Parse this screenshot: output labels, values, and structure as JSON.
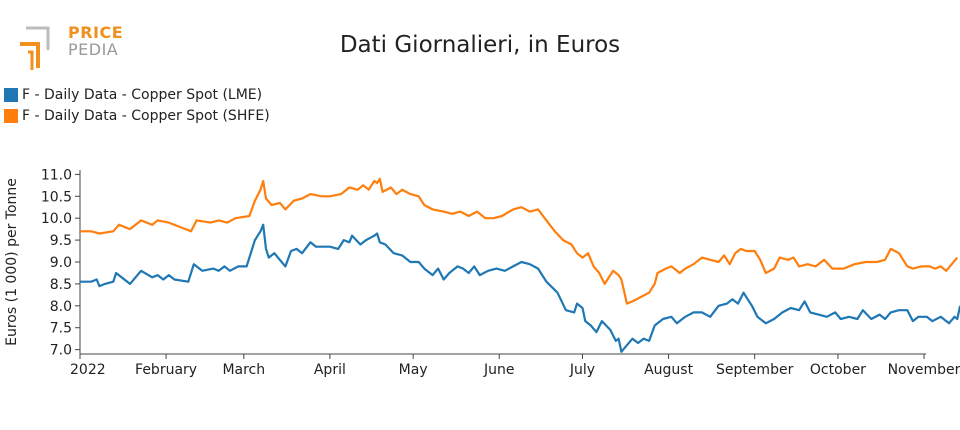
{
  "logo": {
    "line1": "PRICE",
    "line2": "PEDIA",
    "icon": "pricepedia-logo-icon"
  },
  "chart_data": {
    "type": "line",
    "title": "Dati Giornalieri, in Euros",
    "xlabel": "",
    "ylabel": "Euros (1 000) per Tonne",
    "ylim": [
      6.9,
      11.1
    ],
    "yticks": [
      7.0,
      7.5,
      8.0,
      8.5,
      9.0,
      9.5,
      10.0,
      10.5,
      11.0
    ],
    "xlim": [
      "2022-01-01",
      "2022-11-01"
    ],
    "xticks": [
      {
        "date": "2022-01-01",
        "label": "2022"
      },
      {
        "date": "2022-02-01",
        "label": "February"
      },
      {
        "date": "2022-03-01",
        "label": "March"
      },
      {
        "date": "2022-04-01",
        "label": "April"
      },
      {
        "date": "2022-05-01",
        "label": "May"
      },
      {
        "date": "2022-06-01",
        "label": "June"
      },
      {
        "date": "2022-07-01",
        "label": "July"
      },
      {
        "date": "2022-08-01",
        "label": "August"
      },
      {
        "date": "2022-09-01",
        "label": "September"
      },
      {
        "date": "2022-10-01",
        "label": "October"
      },
      {
        "date": "2022-11-01",
        "label": "November"
      }
    ],
    "legend_position": "top-left",
    "grid": false,
    "series": [
      {
        "name": "F - Daily Data - Copper Spot (LME)",
        "color": "#1f77b4",
        "points": [
          [
            "2022-01-01",
            8.55
          ],
          [
            "2022-01-05",
            8.55
          ],
          [
            "2022-01-07",
            8.6
          ],
          [
            "2022-01-08",
            8.45
          ],
          [
            "2022-01-10",
            8.5
          ],
          [
            "2022-01-13",
            8.55
          ],
          [
            "2022-01-14",
            8.75
          ],
          [
            "2022-01-19",
            8.5
          ],
          [
            "2022-01-23",
            8.8
          ],
          [
            "2022-01-27",
            8.65
          ],
          [
            "2022-01-29",
            8.7
          ],
          [
            "2022-01-31",
            8.6
          ],
          [
            "2022-02-02",
            8.7
          ],
          [
            "2022-02-04",
            8.6
          ],
          [
            "2022-02-09",
            8.55
          ],
          [
            "2022-02-11",
            8.95
          ],
          [
            "2022-02-14",
            8.8
          ],
          [
            "2022-02-18",
            8.85
          ],
          [
            "2022-02-20",
            8.8
          ],
          [
            "2022-02-22",
            8.9
          ],
          [
            "2022-02-24",
            8.8
          ],
          [
            "2022-02-27",
            8.9
          ],
          [
            "2022-03-02",
            8.9
          ],
          [
            "2022-03-05",
            9.5
          ],
          [
            "2022-03-07",
            9.7
          ],
          [
            "2022-03-08",
            9.85
          ],
          [
            "2022-03-09",
            9.3
          ],
          [
            "2022-03-10",
            9.1
          ],
          [
            "2022-03-12",
            9.2
          ],
          [
            "2022-03-16",
            8.9
          ],
          [
            "2022-03-18",
            9.25
          ],
          [
            "2022-03-20",
            9.3
          ],
          [
            "2022-03-22",
            9.2
          ],
          [
            "2022-03-25",
            9.45
          ],
          [
            "2022-03-27",
            9.35
          ],
          [
            "2022-04-01",
            9.35
          ],
          [
            "2022-04-04",
            9.3
          ],
          [
            "2022-04-06",
            9.5
          ],
          [
            "2022-04-08",
            9.45
          ],
          [
            "2022-04-09",
            9.6
          ],
          [
            "2022-04-12",
            9.4
          ],
          [
            "2022-04-14",
            9.5
          ],
          [
            "2022-04-17",
            9.6
          ],
          [
            "2022-04-18",
            9.65
          ],
          [
            "2022-04-19",
            9.45
          ],
          [
            "2022-04-21",
            9.4
          ],
          [
            "2022-04-24",
            9.2
          ],
          [
            "2022-04-27",
            9.15
          ],
          [
            "2022-04-30",
            9.0
          ],
          [
            "2022-05-03",
            9.0
          ],
          [
            "2022-05-05",
            8.85
          ],
          [
            "2022-05-08",
            8.7
          ],
          [
            "2022-05-10",
            8.85
          ],
          [
            "2022-05-12",
            8.6
          ],
          [
            "2022-05-14",
            8.75
          ],
          [
            "2022-05-17",
            8.9
          ],
          [
            "2022-05-19",
            8.85
          ],
          [
            "2022-05-21",
            8.75
          ],
          [
            "2022-05-23",
            8.9
          ],
          [
            "2022-05-25",
            8.7
          ],
          [
            "2022-05-28",
            8.8
          ],
          [
            "2022-05-31",
            8.85
          ],
          [
            "2022-06-03",
            8.8
          ],
          [
            "2022-06-06",
            8.9
          ],
          [
            "2022-06-09",
            9.0
          ],
          [
            "2022-06-12",
            8.95
          ],
          [
            "2022-06-15",
            8.85
          ],
          [
            "2022-06-18",
            8.55
          ],
          [
            "2022-06-22",
            8.3
          ],
          [
            "2022-06-25",
            7.9
          ],
          [
            "2022-06-28",
            7.85
          ],
          [
            "2022-06-29",
            8.05
          ],
          [
            "2022-07-01",
            7.95
          ],
          [
            "2022-07-02",
            7.65
          ],
          [
            "2022-07-04",
            7.55
          ],
          [
            "2022-07-06",
            7.4
          ],
          [
            "2022-07-08",
            7.65
          ],
          [
            "2022-07-11",
            7.45
          ],
          [
            "2022-07-13",
            7.2
          ],
          [
            "2022-07-14",
            7.25
          ],
          [
            "2022-07-15",
            6.95
          ],
          [
            "2022-07-17",
            7.1
          ],
          [
            "2022-07-19",
            7.25
          ],
          [
            "2022-07-21",
            7.15
          ],
          [
            "2022-07-23",
            7.25
          ],
          [
            "2022-07-25",
            7.2
          ],
          [
            "2022-07-27",
            7.55
          ],
          [
            "2022-07-30",
            7.7
          ],
          [
            "2022-08-02",
            7.75
          ],
          [
            "2022-08-04",
            7.6
          ],
          [
            "2022-08-07",
            7.75
          ],
          [
            "2022-08-10",
            7.85
          ],
          [
            "2022-08-13",
            7.85
          ],
          [
            "2022-08-16",
            7.75
          ],
          [
            "2022-08-19",
            8.0
          ],
          [
            "2022-08-22",
            8.05
          ],
          [
            "2022-08-24",
            8.15
          ],
          [
            "2022-08-26",
            8.05
          ],
          [
            "2022-08-28",
            8.3
          ],
          [
            "2022-08-31",
            8.0
          ],
          [
            "2022-09-02",
            7.75
          ],
          [
            "2022-09-05",
            7.6
          ],
          [
            "2022-09-08",
            7.7
          ],
          [
            "2022-09-11",
            7.85
          ],
          [
            "2022-09-14",
            7.95
          ],
          [
            "2022-09-17",
            7.9
          ],
          [
            "2022-09-19",
            8.1
          ],
          [
            "2022-09-21",
            7.85
          ],
          [
            "2022-09-24",
            7.8
          ],
          [
            "2022-09-27",
            7.75
          ],
          [
            "2022-09-30",
            7.85
          ],
          [
            "2022-10-02",
            7.7
          ],
          [
            "2022-10-05",
            7.75
          ],
          [
            "2022-10-08",
            7.7
          ],
          [
            "2022-10-10",
            7.9
          ],
          [
            "2022-10-13",
            7.7
          ],
          [
            "2022-10-16",
            7.8
          ],
          [
            "2022-10-18",
            7.7
          ],
          [
            "2022-10-20",
            7.85
          ],
          [
            "2022-10-23",
            7.9
          ],
          [
            "2022-10-26",
            7.9
          ],
          [
            "2022-10-28",
            7.65
          ],
          [
            "2022-10-30",
            7.75
          ],
          [
            "2022-11-02",
            7.75
          ],
          [
            "2022-11-04",
            7.65
          ],
          [
            "2022-11-07",
            7.75
          ],
          [
            "2022-11-10",
            7.6
          ],
          [
            "2022-11-12",
            7.75
          ],
          [
            "2022-11-13",
            7.7
          ],
          [
            "2022-11-14",
            8.0
          ]
        ]
      },
      {
        "name": "F - Daily Data - Copper Spot (SHFE)",
        "color": "#ff7f0e",
        "points": [
          [
            "2022-01-01",
            9.7
          ],
          [
            "2022-01-05",
            9.7
          ],
          [
            "2022-01-08",
            9.65
          ],
          [
            "2022-01-13",
            9.7
          ],
          [
            "2022-01-15",
            9.85
          ],
          [
            "2022-01-19",
            9.75
          ],
          [
            "2022-01-23",
            9.95
          ],
          [
            "2022-01-27",
            9.85
          ],
          [
            "2022-01-29",
            9.95
          ],
          [
            "2022-02-02",
            9.9
          ],
          [
            "2022-02-08",
            9.75
          ],
          [
            "2022-02-10",
            9.7
          ],
          [
            "2022-02-12",
            9.95
          ],
          [
            "2022-02-17",
            9.9
          ],
          [
            "2022-02-20",
            9.95
          ],
          [
            "2022-02-23",
            9.9
          ],
          [
            "2022-02-26",
            10.0
          ],
          [
            "2022-03-03",
            10.05
          ],
          [
            "2022-03-05",
            10.4
          ],
          [
            "2022-03-07",
            10.65
          ],
          [
            "2022-03-08",
            10.85
          ],
          [
            "2022-03-09",
            10.45
          ],
          [
            "2022-03-11",
            10.3
          ],
          [
            "2022-03-14",
            10.35
          ],
          [
            "2022-03-16",
            10.2
          ],
          [
            "2022-03-19",
            10.4
          ],
          [
            "2022-03-22",
            10.45
          ],
          [
            "2022-03-25",
            10.55
          ],
          [
            "2022-03-29",
            10.5
          ],
          [
            "2022-04-01",
            10.5
          ],
          [
            "2022-04-05",
            10.55
          ],
          [
            "2022-04-08",
            10.7
          ],
          [
            "2022-04-11",
            10.65
          ],
          [
            "2022-04-13",
            10.75
          ],
          [
            "2022-04-15",
            10.65
          ],
          [
            "2022-04-17",
            10.85
          ],
          [
            "2022-04-18",
            10.8
          ],
          [
            "2022-04-19",
            10.9
          ],
          [
            "2022-04-20",
            10.6
          ],
          [
            "2022-04-23",
            10.7
          ],
          [
            "2022-04-25",
            10.55
          ],
          [
            "2022-04-27",
            10.65
          ],
          [
            "2022-04-30",
            10.55
          ],
          [
            "2022-05-03",
            10.5
          ],
          [
            "2022-05-05",
            10.3
          ],
          [
            "2022-05-08",
            10.2
          ],
          [
            "2022-05-12",
            10.15
          ],
          [
            "2022-05-15",
            10.1
          ],
          [
            "2022-05-18",
            10.15
          ],
          [
            "2022-05-21",
            10.05
          ],
          [
            "2022-05-24",
            10.15
          ],
          [
            "2022-05-27",
            10.0
          ],
          [
            "2022-05-30",
            10.0
          ],
          [
            "2022-06-02",
            10.05
          ],
          [
            "2022-06-06",
            10.2
          ],
          [
            "2022-06-09",
            10.25
          ],
          [
            "2022-06-12",
            10.15
          ],
          [
            "2022-06-15",
            10.2
          ],
          [
            "2022-06-18",
            9.95
          ],
          [
            "2022-06-21",
            9.7
          ],
          [
            "2022-06-24",
            9.5
          ],
          [
            "2022-06-27",
            9.4
          ],
          [
            "2022-06-29",
            9.2
          ],
          [
            "2022-07-01",
            9.1
          ],
          [
            "2022-07-03",
            9.2
          ],
          [
            "2022-07-05",
            8.9
          ],
          [
            "2022-07-07",
            8.75
          ],
          [
            "2022-07-09",
            8.5
          ],
          [
            "2022-07-10",
            8.6
          ],
          [
            "2022-07-12",
            8.8
          ],
          [
            "2022-07-14",
            8.7
          ],
          [
            "2022-07-15",
            8.6
          ],
          [
            "2022-07-17",
            8.05
          ],
          [
            "2022-07-19",
            8.1
          ],
          [
            "2022-07-22",
            8.2
          ],
          [
            "2022-07-25",
            8.3
          ],
          [
            "2022-07-27",
            8.5
          ],
          [
            "2022-07-28",
            8.75
          ],
          [
            "2022-07-31",
            8.85
          ],
          [
            "2022-08-02",
            8.9
          ],
          [
            "2022-08-05",
            8.75
          ],
          [
            "2022-08-07",
            8.85
          ],
          [
            "2022-08-10",
            8.95
          ],
          [
            "2022-08-13",
            9.1
          ],
          [
            "2022-08-16",
            9.05
          ],
          [
            "2022-08-19",
            9.0
          ],
          [
            "2022-08-21",
            9.15
          ],
          [
            "2022-08-23",
            8.95
          ],
          [
            "2022-08-25",
            9.2
          ],
          [
            "2022-08-27",
            9.3
          ],
          [
            "2022-08-29",
            9.25
          ],
          [
            "2022-09-01",
            9.25
          ],
          [
            "2022-09-03",
            9.05
          ],
          [
            "2022-09-05",
            8.75
          ],
          [
            "2022-09-08",
            8.85
          ],
          [
            "2022-09-10",
            9.1
          ],
          [
            "2022-09-13",
            9.05
          ],
          [
            "2022-09-15",
            9.1
          ],
          [
            "2022-09-17",
            8.9
          ],
          [
            "2022-09-20",
            8.95
          ],
          [
            "2022-09-23",
            8.9
          ],
          [
            "2022-09-26",
            9.05
          ],
          [
            "2022-09-29",
            8.85
          ],
          [
            "2022-10-03",
            8.85
          ],
          [
            "2022-10-07",
            8.95
          ],
          [
            "2022-10-11",
            9.0
          ],
          [
            "2022-10-15",
            9.0
          ],
          [
            "2022-10-18",
            9.05
          ],
          [
            "2022-10-20",
            9.3
          ],
          [
            "2022-10-23",
            9.2
          ],
          [
            "2022-10-26",
            8.9
          ],
          [
            "2022-10-28",
            8.85
          ],
          [
            "2022-10-31",
            8.9
          ],
          [
            "2022-11-03",
            8.9
          ],
          [
            "2022-11-05",
            8.85
          ],
          [
            "2022-11-07",
            8.9
          ],
          [
            "2022-11-09",
            8.8
          ],
          [
            "2022-11-11",
            8.95
          ],
          [
            "2022-11-13",
            9.1
          ]
        ]
      }
    ]
  }
}
